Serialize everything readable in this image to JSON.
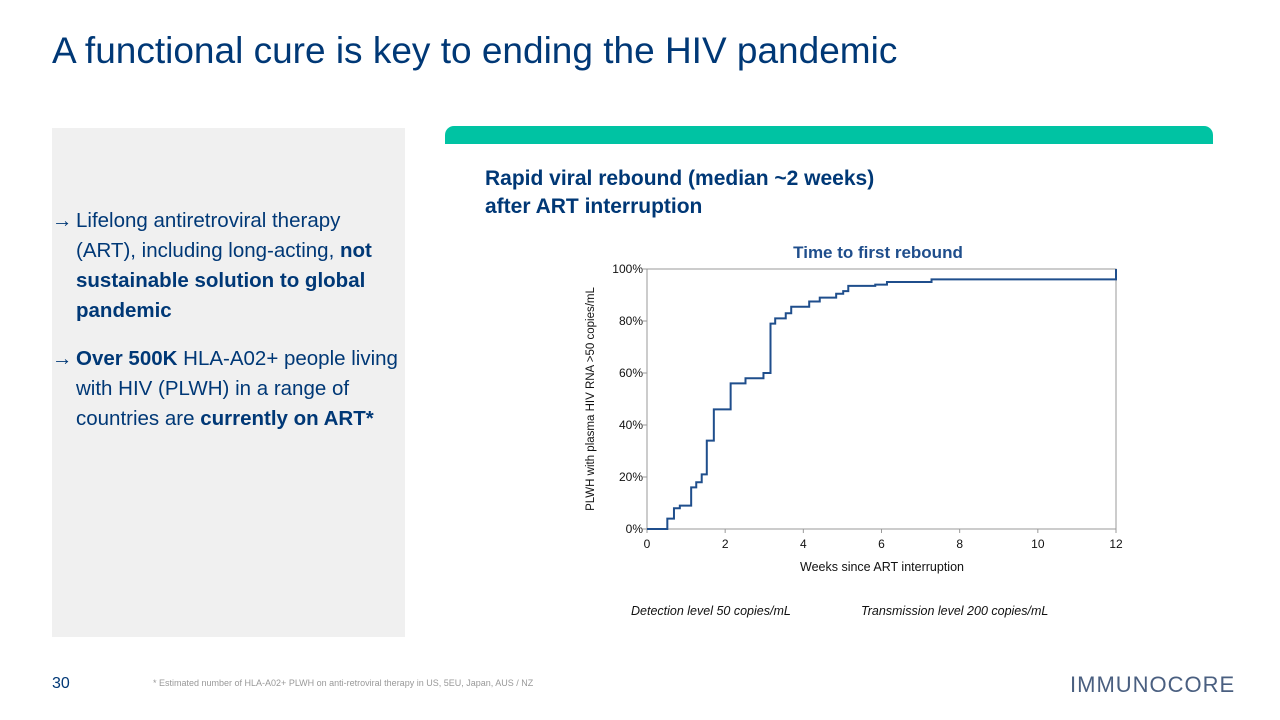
{
  "title": "A functional cure is key to ending the HIV pandemic",
  "bullets": [
    {
      "parts": [
        " Lifelong antiretroviral therapy (ART), including long-acting, ",
        "not sustainable solution to global pandemic"
      ]
    },
    {
      "parts": [
        " ",
        "Over 500K",
        " HLA-A02+ people living with HIV (PLWH) in a range of countries are ",
        "currently on ART*"
      ]
    }
  ],
  "bullet_arrow": "→",
  "subtitle_line1": "Rapid viral rebound (median ~2 weeks)",
  "subtitle_line2": "after ART interruption",
  "legend": {
    "detection": "Detection level 50 copies/mL",
    "transmission": "Transmission level 200 copies/mL"
  },
  "page_number": "30",
  "footnote": "* Estimated number of HLA-A02+ PLWH on anti-retroviral therapy in US, 5EU, Japan, AUS / NZ",
  "logo": "IMMUNOCORE",
  "colors": {
    "navy": "#003876",
    "teal": "#00c3a3",
    "line": "#1f4e8c"
  },
  "chart_data": {
    "type": "line",
    "subtype": "step (Kaplan-Meier cumulative)",
    "title": "Time to first rebound",
    "xlabel": "Weeks since ART interruption",
    "ylabel": "PLWH with plasma HIV RNA >50 copies/mL",
    "xlim": [
      0,
      12
    ],
    "ylim": [
      0,
      100
    ],
    "xticks": [
      "0",
      "2",
      "4",
      "6",
      "8",
      "10",
      "12"
    ],
    "yticks": [
      "0%",
      "20%",
      "40%",
      "60%",
      "80%",
      "100%"
    ],
    "grid": false,
    "series": [
      {
        "name": "Time to first rebound",
        "x": [
          0,
          0.52,
          0.69,
          0.84,
          1.13,
          1.26,
          1.4,
          1.53,
          1.71,
          2.14,
          2.52,
          2.98,
          3.16,
          3.28,
          3.55,
          3.69,
          4.15,
          4.42,
          4.84,
          5.02,
          5.15,
          5.84,
          6.14,
          7.28,
          12
        ],
        "y": [
          0,
          4,
          8,
          9,
          16,
          18,
          21,
          34,
          46,
          56,
          58,
          60,
          79,
          81,
          83,
          85.5,
          87.5,
          89,
          90.5,
          91.5,
          93.5,
          94,
          95,
          96,
          100
        ]
      }
    ]
  }
}
